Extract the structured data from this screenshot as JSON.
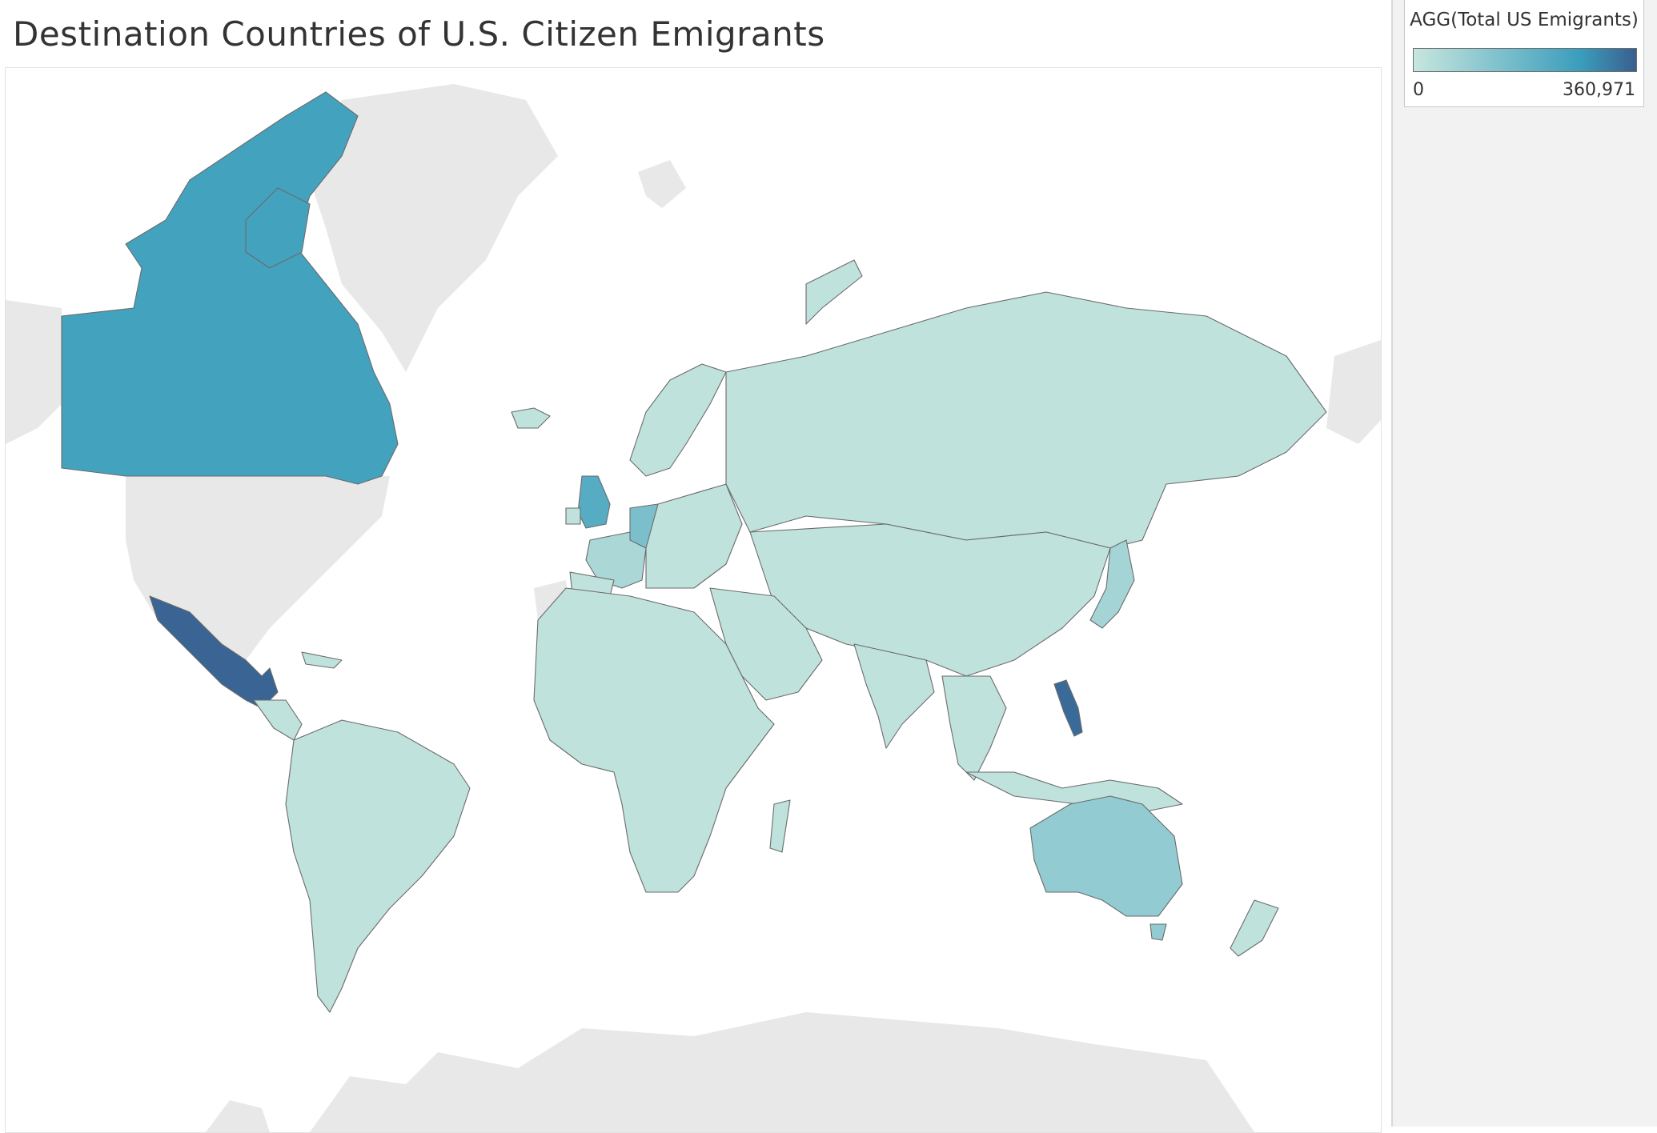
{
  "title": "Destination Countries of U.S. Citizen Emigrants",
  "legend": {
    "title": "AGG(Total US Emigrants)",
    "min_label": "0",
    "max_label": "360,971",
    "min_value": 0,
    "max_value": 360971,
    "color_low": "#c7e6de",
    "color_mid": "#3a9dbc",
    "color_high": "#3a5f8f"
  },
  "map": {
    "projection": "mercator",
    "no_data_color": "#e8e8e8",
    "ocean_color": "#ffffff"
  },
  "chart_data": {
    "type": "choropleth",
    "measure": "AGG(Total US Emigrants)",
    "range": [
      0,
      360971
    ],
    "regions": [
      {
        "id": "mexico",
        "level": 0.98
      },
      {
        "id": "philippines",
        "level": 0.95
      },
      {
        "id": "canada",
        "level": 0.7
      },
      {
        "id": "united-kingdom",
        "level": 0.6
      },
      {
        "id": "germany",
        "level": 0.4
      },
      {
        "id": "australia",
        "level": 0.28
      },
      {
        "id": "japan",
        "level": 0.18
      },
      {
        "id": "france",
        "level": 0.15
      },
      {
        "id": "other-countries",
        "level": 0.04
      }
    ]
  }
}
